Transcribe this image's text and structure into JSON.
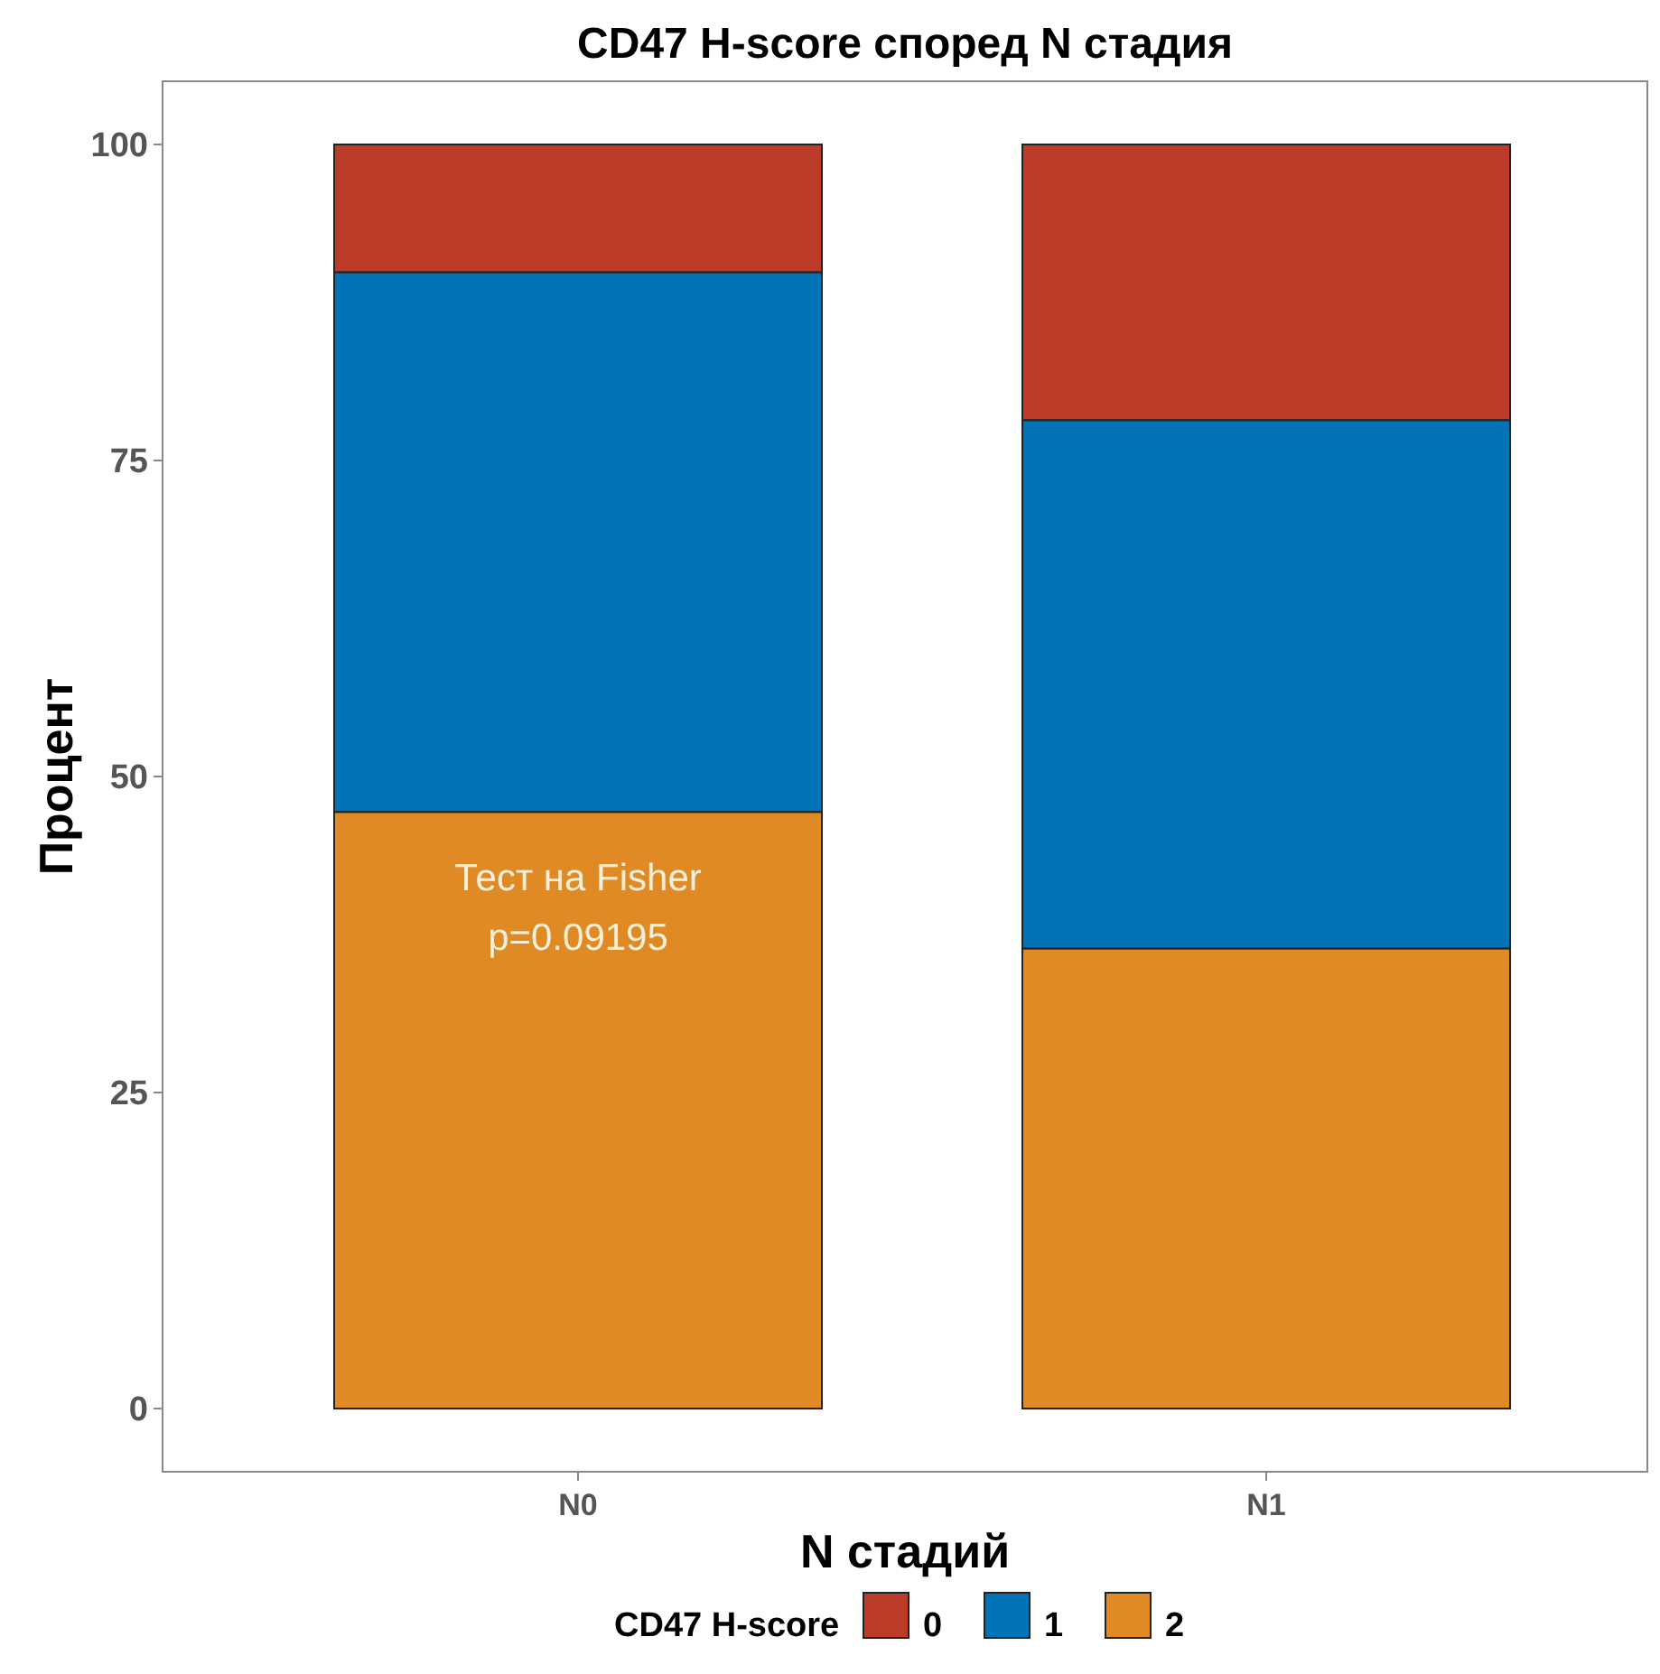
{
  "chart_data": {
    "type": "bar",
    "title": "CD47 H-score според N стадия",
    "xlabel": "N стадий",
    "ylabel": "Процент",
    "legend_title": "CD47 H-score",
    "categories": [
      "N0",
      "N1"
    ],
    "stacked": true,
    "series": [
      {
        "name": "2",
        "color": "#e08a25",
        "values": [
          47.2,
          36.4
        ]
      },
      {
        "name": "1",
        "color": "#0072b5",
        "values": [
          42.7,
          41.8
        ]
      },
      {
        "name": "0",
        "color": "#bc3c29",
        "values": [
          10.1,
          21.8
        ]
      }
    ],
    "ylim": [
      -5,
      105
    ],
    "yticks": [
      0,
      25,
      50,
      75,
      100
    ],
    "grid": false,
    "legend": "bottom",
    "annotations": [
      "Тест на Fisher",
      "p=0.09195"
    ]
  }
}
